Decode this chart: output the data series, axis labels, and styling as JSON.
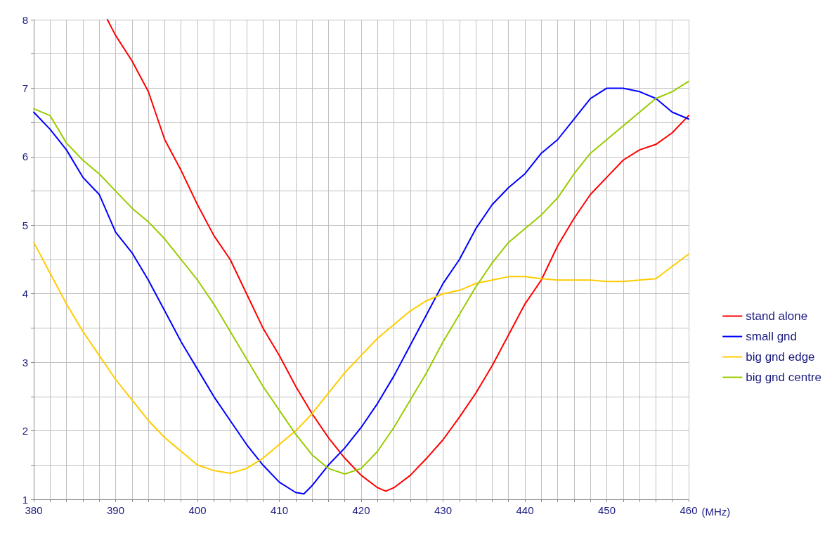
{
  "chart_data": {
    "type": "line",
    "xlabel": "(MHz)",
    "xlim": [
      380,
      460
    ],
    "ylim": [
      1,
      8
    ],
    "xticks": [
      380,
      {
        "value": 382,
        "label": null
      },
      {
        "value": 384,
        "label": null
      },
      {
        "value": 386,
        "label": null
      },
      {
        "value": 388,
        "label": null
      },
      390,
      {
        "value": 392,
        "label": null
      },
      {
        "value": 394,
        "label": null
      },
      {
        "value": 396,
        "label": null
      },
      {
        "value": 398,
        "label": null
      },
      400,
      {
        "value": 402,
        "label": null
      },
      {
        "value": 404,
        "label": null
      },
      {
        "value": 406,
        "label": null
      },
      {
        "value": 408,
        "label": null
      },
      410,
      {
        "value": 412,
        "label": null
      },
      {
        "value": 414,
        "label": null
      },
      {
        "value": 416,
        "label": null
      },
      {
        "value": 418,
        "label": null
      },
      420,
      {
        "value": 422,
        "label": null
      },
      {
        "value": 424,
        "label": null
      },
      {
        "value": 426,
        "label": null
      },
      {
        "value": 428,
        "label": null
      },
      430,
      {
        "value": 432,
        "label": null
      },
      {
        "value": 434,
        "label": null
      },
      {
        "value": 436,
        "label": null
      },
      {
        "value": 438,
        "label": null
      },
      440,
      {
        "value": 442,
        "label": null
      },
      {
        "value": 444,
        "label": null
      },
      {
        "value": 446,
        "label": null
      },
      {
        "value": 448,
        "label": null
      },
      450,
      {
        "value": 452,
        "label": null
      },
      {
        "value": 454,
        "label": null
      },
      {
        "value": 456,
        "label": null
      },
      {
        "value": 458,
        "label": null
      },
      460
    ],
    "yticks": [
      1,
      {
        "value": 1.5,
        "label": null
      },
      2,
      {
        "value": 2.5,
        "label": null
      },
      3,
      {
        "value": 3.5,
        "label": null
      },
      4,
      {
        "value": 4.5,
        "label": null
      },
      5,
      {
        "value": 5.5,
        "label": null
      },
      6,
      {
        "value": 6.5,
        "label": null
      },
      7,
      {
        "value": 7.5,
        "label": null
      },
      8
    ],
    "grid": true,
    "legend": "right",
    "marker": "none",
    "line_style": "solid",
    "series": [
      {
        "name": "stand alone",
        "color": "#ff0000",
        "x": [
          389,
          390,
          392,
          394,
          396,
          398,
          400,
          402,
          404,
          406,
          408,
          410,
          412,
          414,
          416,
          418,
          420,
          422,
          423,
          424,
          426,
          428,
          430,
          432,
          434,
          436,
          438,
          440,
          442,
          444,
          446,
          448,
          450,
          452,
          454,
          456,
          458,
          460
        ],
        "values": [
          8.0,
          7.77,
          7.4,
          6.95,
          6.25,
          5.8,
          5.3,
          4.85,
          4.5,
          4.0,
          3.5,
          3.1,
          2.65,
          2.25,
          1.9,
          1.6,
          1.35,
          1.17,
          1.12,
          1.17,
          1.35,
          1.6,
          1.87,
          2.2,
          2.55,
          2.95,
          3.4,
          3.85,
          4.2,
          4.7,
          5.1,
          5.45,
          5.7,
          5.95,
          6.1,
          6.18,
          6.35,
          6.6
        ]
      },
      {
        "name": "small gnd",
        "color": "#0000ff",
        "x": [
          380,
          382,
          384,
          386,
          388,
          390,
          392,
          394,
          396,
          398,
          400,
          402,
          404,
          406,
          408,
          410,
          412,
          413,
          414,
          416,
          418,
          420,
          422,
          424,
          426,
          428,
          430,
          432,
          434,
          436,
          438,
          440,
          442,
          444,
          446,
          448,
          450,
          452,
          454,
          456,
          458,
          460
        ],
        "values": [
          6.65,
          6.4,
          6.1,
          5.7,
          5.45,
          4.9,
          4.6,
          4.2,
          3.75,
          3.3,
          2.9,
          2.5,
          2.15,
          1.8,
          1.5,
          1.25,
          1.1,
          1.08,
          1.2,
          1.5,
          1.75,
          2.05,
          2.4,
          2.8,
          3.25,
          3.7,
          4.15,
          4.5,
          4.95,
          5.3,
          5.55,
          5.75,
          6.05,
          6.25,
          6.55,
          6.85,
          7.0,
          7.0,
          6.95,
          6.85,
          6.65,
          6.55
        ]
      },
      {
        "name": "big gnd edge",
        "color": "#ffcc00",
        "x": [
          380,
          382,
          384,
          386,
          388,
          390,
          392,
          394,
          396,
          398,
          400,
          402,
          404,
          406,
          408,
          410,
          412,
          414,
          416,
          418,
          420,
          422,
          424,
          426,
          428,
          430,
          432,
          434,
          436,
          438,
          440,
          442,
          444,
          446,
          448,
          450,
          452,
          454,
          456,
          458,
          460
        ],
        "values": [
          4.75,
          4.3,
          3.85,
          3.45,
          3.1,
          2.75,
          2.45,
          2.15,
          1.9,
          1.7,
          1.5,
          1.42,
          1.38,
          1.45,
          1.6,
          1.8,
          2.0,
          2.25,
          2.55,
          2.85,
          3.1,
          3.35,
          3.55,
          3.75,
          3.9,
          4.0,
          4.05,
          4.15,
          4.2,
          4.25,
          4.25,
          4.22,
          4.2,
          4.2,
          4.2,
          4.18,
          4.18,
          4.2,
          4.22,
          4.4,
          4.58
        ]
      },
      {
        "name": "big gnd centre",
        "color": "#99cc00",
        "x": [
          380,
          382,
          384,
          386,
          388,
          390,
          392,
          394,
          396,
          398,
          400,
          402,
          404,
          406,
          408,
          410,
          412,
          414,
          416,
          418,
          420,
          422,
          424,
          426,
          428,
          430,
          432,
          434,
          436,
          438,
          440,
          442,
          444,
          446,
          448,
          450,
          452,
          454,
          456,
          458,
          460
        ],
        "values": [
          6.7,
          6.6,
          6.2,
          5.95,
          5.75,
          5.5,
          5.25,
          5.05,
          4.8,
          4.5,
          4.2,
          3.85,
          3.45,
          3.05,
          2.65,
          2.3,
          1.95,
          1.65,
          1.45,
          1.37,
          1.45,
          1.7,
          2.05,
          2.45,
          2.85,
          3.3,
          3.7,
          4.1,
          4.45,
          4.75,
          4.95,
          5.15,
          5.4,
          5.75,
          6.05,
          6.25,
          6.45,
          6.65,
          6.85,
          6.95,
          7.1
        ]
      }
    ]
  }
}
